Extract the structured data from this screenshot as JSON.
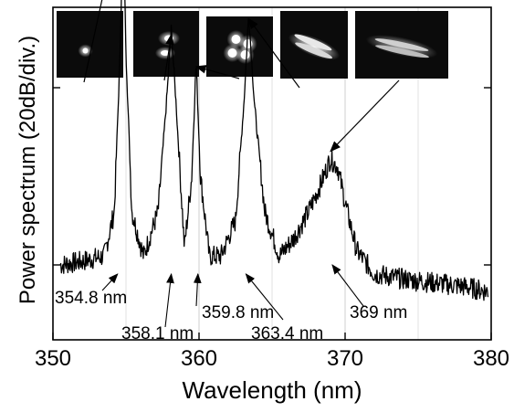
{
  "chart_data": {
    "type": "line",
    "xlabel": "Wavelength (nm)",
    "ylabel": "Power spectrum (20dB/div.)",
    "xlim": [
      350,
      380
    ],
    "ylim": [
      0,
      2
    ],
    "x_ticks": [
      350,
      360,
      370,
      380
    ],
    "x_tick_labels": [
      "350",
      "360",
      "370",
      "380"
    ],
    "y_ticks": [
      0,
      1,
      2
    ],
    "grid": "vertical",
    "series": [
      {
        "values_note": "",
        "x": [
          350.5,
          352,
          353.5,
          354.2,
          354.6,
          354.8,
          355.0,
          355.4,
          356.2,
          357.2,
          357.8,
          358.1,
          358.4,
          359.0,
          359.5,
          359.8,
          360.1,
          360.7,
          361.5,
          362.5,
          363.1,
          363.4,
          363.8,
          364.5,
          365.5,
          366.5,
          367.5,
          368.3,
          369.0,
          369.5,
          370.0,
          370.8,
          372,
          374,
          376,
          378,
          379.8
        ],
        "values": [
          0.0,
          0.02,
          0.05,
          0.3,
          1.2,
          2.0,
          1.2,
          0.3,
          0.05,
          0.3,
          0.95,
          1.33,
          0.95,
          0.1,
          0.5,
          1.15,
          0.5,
          0.05,
          0.05,
          0.25,
          0.95,
          1.42,
          0.9,
          0.3,
          0.05,
          0.15,
          0.3,
          0.45,
          0.6,
          0.55,
          0.35,
          0.08,
          -0.05,
          -0.08,
          -0.1,
          -0.12,
          -0.15
        ]
      }
    ],
    "annotations": [
      {
        "label": "354.8 nm",
        "x": 354.8
      },
      {
        "label": "358.1 nm",
        "x": 358.1
      },
      {
        "label": "359.8 nm",
        "x": 359.8
      },
      {
        "label": "363.4 nm",
        "x": 363.4
      },
      {
        "label": "369 nm",
        "x": 369.0
      }
    ],
    "insets": [
      {
        "name": "mode-354.8",
        "pattern": "small-spot"
      },
      {
        "name": "mode-358.1",
        "pattern": "two-lobe"
      },
      {
        "name": "mode-359.8",
        "pattern": "four-lobe"
      },
      {
        "name": "mode-363.4",
        "pattern": "elongated-stripe"
      },
      {
        "name": "mode-369",
        "pattern": "faint-stripe"
      }
    ]
  }
}
